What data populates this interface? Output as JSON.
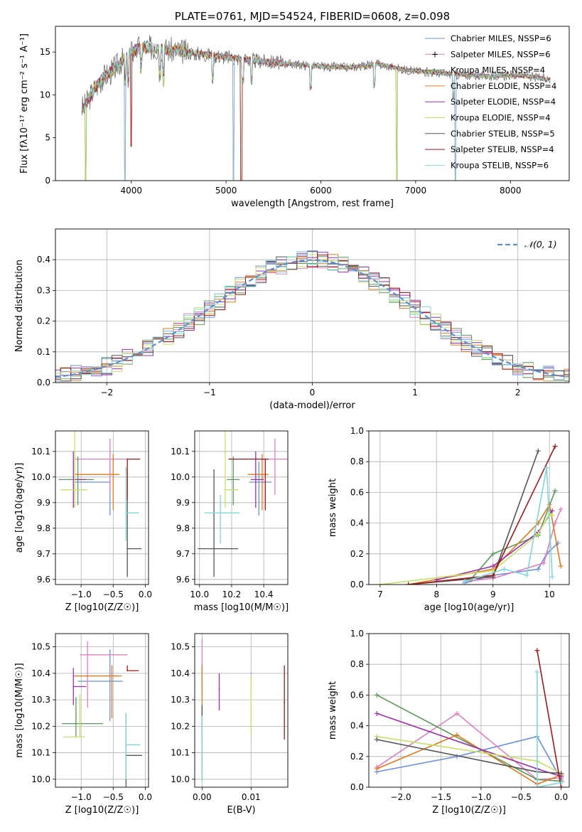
{
  "colors": {
    "chabrier_miles": "#6b8fe0",
    "salpeter_miles": "#e27fbd",
    "kroupa_miles": "#5a9a5a",
    "chabrier_elodie": "#e07a1f",
    "salpeter_elodie": "#9b2fae",
    "kroupa_elodie": "#c7e066",
    "chabrier_stelib": "#555555",
    "salpeter_stelib": "#a01818",
    "kroupa_stelib": "#7fd8d8",
    "normal": "#5b8fd6"
  },
  "chart_data": [
    {
      "id": "spectrum",
      "type": "line",
      "title": "PLATE=0761, MJD=54524, FIBERID=0608, z=0.098",
      "xlabel": "wavelength [Angstrom, rest frame]",
      "ylabel": "Flux [fλ10⁻¹⁷ erg cm⁻² s⁻¹ A⁻¹]",
      "xlim": [
        3200,
        8620
      ],
      "ylim": [
        0,
        18
      ],
      "xticks": [
        "4000",
        "5000",
        "6000",
        "7000",
        "8000"
      ],
      "yticks": [
        "0",
        "5",
        "10",
        "15"
      ],
      "legend_position": "top-right",
      "legend": [
        "Chabrier MILES, NSSP=6",
        "Salpeter MILES, NSSP=6",
        "Kroupa MILES, NSSP=4",
        "Chabrier ELODIE, NSSP=4",
        "Salpeter ELODIE, NSSP=4",
        "Kroupa ELODIE, NSSP=4",
        "Chabrier STELIB, NSSP=5",
        "Salpeter STELIB, NSSP=4",
        "Kroupa STELIB, NSSP=6"
      ],
      "continuum": {
        "x": [
          3500,
          3600,
          3700,
          3800,
          3900,
          4000,
          4100,
          4300,
          4500,
          4800,
          5000,
          5300,
          5600,
          6000,
          6300,
          6600,
          6900,
          7200,
          7500,
          7800,
          8100,
          8400
        ],
        "y": [
          8.5,
          10.5,
          12.0,
          12.8,
          14.0,
          15.0,
          15.6,
          15.4,
          15.1,
          14.7,
          14.4,
          14.0,
          13.7,
          13.3,
          13.2,
          13.6,
          12.9,
          12.6,
          12.3,
          12.2,
          12.3,
          11.8
        ]
      },
      "absorption_lines": [
        3934,
        3968,
        4102,
        4304,
        4340,
        4861,
        5175,
        5270,
        5890,
        6563,
        7400
      ],
      "line_dips": [
        {
          "x": 3520,
          "y": 0
        },
        {
          "x": 3935,
          "y": 0
        },
        {
          "x": 4000,
          "y": 4
        },
        {
          "x": 4340,
          "y": 11
        },
        {
          "x": 5080,
          "y": 0
        },
        {
          "x": 5160,
          "y": 0
        },
        {
          "x": 6800,
          "y": 0
        },
        {
          "x": 7420,
          "y": 0
        }
      ]
    },
    {
      "id": "residuals",
      "type": "histogram",
      "xlabel": "(data-model)/error",
      "ylabel": "Normed distribution",
      "xlim": [
        -2.5,
        2.5
      ],
      "ylim": [
        0,
        0.5
      ],
      "xticks": [
        "−2",
        "−1",
        "0",
        "1",
        "2"
      ],
      "yticks": [
        "0.0",
        "0.1",
        "0.2",
        "0.3",
        "0.4"
      ],
      "legend": [
        "𝒩(0, 1)"
      ],
      "legend_position": "top-right",
      "bin_width": 0.1,
      "series": [
        {
          "color_key": "chabrier_miles",
          "seed": 1
        },
        {
          "color_key": "salpeter_miles",
          "seed": 2
        },
        {
          "color_key": "kroupa_miles",
          "seed": 3
        },
        {
          "color_key": "chabrier_elodie",
          "seed": 4
        },
        {
          "color_key": "salpeter_elodie",
          "seed": 5
        },
        {
          "color_key": "kroupa_elodie",
          "seed": 6
        },
        {
          "color_key": "chabrier_stelib",
          "seed": 7
        },
        {
          "color_key": "salpeter_stelib",
          "seed": 8
        },
        {
          "color_key": "kroupa_stelib",
          "seed": 9
        }
      ]
    },
    {
      "id": "age_vs_Z",
      "type": "errorbar",
      "xlabel": "Z [log10(Z/Z☉)]",
      "ylabel": "age  [log10(age/yr)]",
      "xlim": [
        -1.4,
        0.05
      ],
      "ylim": [
        9.58,
        10.18
      ],
      "xticks": [
        "−1.0",
        "−0.5",
        "0.0"
      ],
      "yticks": [
        "9.6",
        "9.7",
        "9.8",
        "9.9",
        "10.0",
        "10.1"
      ],
      "points": [
        {
          "color_key": "chabrier_miles",
          "x": -0.55,
          "xerr": [
            0.55,
            0.0
          ],
          "y": 9.98,
          "yerr": [
            0.13,
            0.08
          ]
        },
        {
          "color_key": "salpeter_miles",
          "x": -0.55,
          "xerr": [
            0.55,
            0.28
          ],
          "y": 10.07,
          "yerr": [
            0.13,
            0.08
          ]
        },
        {
          "color_key": "kroupa_miles",
          "x": -1.05,
          "xerr": [
            0.3,
            0.25
          ],
          "y": 9.99,
          "yerr": [
            0.1,
            0.09
          ]
        },
        {
          "color_key": "chabrier_elodie",
          "x": -0.5,
          "xerr": [
            0.6,
            0.1
          ],
          "y": 10.01,
          "yerr": [
            0.14,
            0.08
          ]
        },
        {
          "color_key": "salpeter_elodie",
          "x": -1.12,
          "xerr": [
            0.0,
            0.2
          ],
          "y": 9.99,
          "yerr": [
            0.11,
            0.11
          ]
        },
        {
          "color_key": "kroupa_elodie",
          "x": -1.1,
          "xerr": [
            0.22,
            0.2
          ],
          "y": 9.95,
          "yerr": [
            0.07,
            0.23
          ]
        },
        {
          "color_key": "chabrier_stelib",
          "x": -0.28,
          "xerr": [
            0.0,
            0.22
          ],
          "y": 9.72,
          "yerr": [
            0.11,
            0.31
          ]
        },
        {
          "color_key": "salpeter_stelib",
          "x": -0.28,
          "xerr": [
            0.0,
            0.2
          ],
          "y": 10.07,
          "yerr": [
            0.16,
            0.0
          ]
        },
        {
          "color_key": "kroupa_stelib",
          "x": -0.3,
          "xerr": [
            0.0,
            0.2
          ],
          "y": 9.86,
          "yerr": [
            0.11,
            0.18
          ]
        }
      ]
    },
    {
      "id": "age_vs_mass",
      "type": "errorbar",
      "xlabel": "mass [log10(M/M☉)]",
      "ylabel": "",
      "xlim": [
        9.97,
        10.55
      ],
      "ylim": [
        9.58,
        10.18
      ],
      "xticks": [
        "10.0",
        "10.2",
        "10.4"
      ],
      "yticks": [
        "9.6",
        "9.7",
        "9.8",
        "9.9",
        "10.0",
        "10.1"
      ],
      "points": [
        {
          "color_key": "chabrier_miles",
          "x": 10.37,
          "xerr": [
            0.06,
            0.08
          ],
          "y": 9.98,
          "yerr": [
            0.13,
            0.08
          ]
        },
        {
          "color_key": "salpeter_miles",
          "x": 10.47,
          "xerr": [
            0.1,
            0.09
          ],
          "y": 10.07,
          "yerr": [
            0.14,
            0.08
          ]
        },
        {
          "color_key": "kroupa_miles",
          "x": 10.21,
          "xerr": [
            0.04,
            0.04
          ],
          "y": 9.99,
          "yerr": [
            0.1,
            0.09
          ]
        },
        {
          "color_key": "chabrier_elodie",
          "x": 10.39,
          "xerr": [
            0.09,
            0.04
          ],
          "y": 10.01,
          "yerr": [
            0.14,
            0.08
          ]
        },
        {
          "color_key": "salpeter_elodie",
          "x": 10.35,
          "xerr": [
            0.03,
            0.05
          ],
          "y": 9.99,
          "yerr": [
            0.11,
            0.11
          ]
        },
        {
          "color_key": "kroupa_elodie",
          "x": 10.16,
          "xerr": [
            0.0,
            0.08
          ],
          "y": 9.95,
          "yerr": [
            0.07,
            0.23
          ]
        },
        {
          "color_key": "chabrier_stelib",
          "x": 10.09,
          "xerr": [
            0.1,
            0.15
          ],
          "y": 9.72,
          "yerr": [
            0.11,
            0.31
          ]
        },
        {
          "color_key": "salpeter_stelib",
          "x": 10.41,
          "xerr": [
            0.23,
            0.02
          ],
          "y": 10.07,
          "yerr": [
            0.2,
            0.0
          ]
        },
        {
          "color_key": "kroupa_stelib",
          "x": 10.13,
          "xerr": [
            0.1,
            0.12
          ],
          "y": 9.86,
          "yerr": [
            0.12,
            0.07
          ]
        }
      ]
    },
    {
      "id": "weight_vs_age",
      "type": "line",
      "xlabel": "age  [log10(age/yr)]",
      "ylabel": "mass weight",
      "xlim": [
        6.8,
        10.35
      ],
      "ylim": [
        0,
        1
      ],
      "xticks": [
        "7",
        "8",
        "9",
        "10"
      ],
      "yticks": [
        "0.0",
        "0.2",
        "0.4",
        "0.6",
        "0.8",
        "1.0"
      ],
      "series": [
        {
          "color_key": "chabrier_miles",
          "x": [
            8.5,
            9.0,
            9.8,
            9.95,
            10.15
          ],
          "y": [
            0.01,
            0.06,
            0.1,
            0.2,
            0.27
          ]
        },
        {
          "color_key": "salpeter_miles",
          "x": [
            8.5,
            9.0,
            9.9,
            10.1,
            10.2
          ],
          "y": [
            0.02,
            0.04,
            0.14,
            0.4,
            0.49
          ]
        },
        {
          "color_key": "kroupa_miles",
          "x": [
            8.6,
            9.0,
            9.8,
            10.1
          ],
          "y": [
            0.03,
            0.2,
            0.32,
            0.61
          ]
        },
        {
          "color_key": "chabrier_elodie",
          "x": [
            7.5,
            9.0,
            9.8,
            10.0,
            10.2
          ],
          "y": [
            0.0,
            0.1,
            0.4,
            0.52,
            0.12
          ]
        },
        {
          "color_key": "salpeter_elodie",
          "x": [
            8.0,
            9.0,
            9.8,
            10.05
          ],
          "y": [
            0.03,
            0.12,
            0.34,
            0.48
          ]
        },
        {
          "color_key": "kroupa_elodie",
          "x": [
            7.0,
            9.0,
            9.8,
            10.0,
            10.05
          ],
          "y": [
            0.0,
            0.09,
            0.33,
            0.46,
            0.45
          ]
        },
        {
          "color_key": "chabrier_stelib",
          "x": [
            7.5,
            9.0,
            9.8
          ],
          "y": [
            0.0,
            0.05,
            0.87
          ]
        },
        {
          "color_key": "salpeter_stelib",
          "x": [
            7.5,
            9.0,
            10.1
          ],
          "y": [
            0.0,
            0.06,
            0.9
          ]
        },
        {
          "color_key": "kroupa_stelib",
          "x": [
            8.5,
            9.2,
            9.6,
            9.95,
            10.05
          ],
          "y": [
            0.02,
            0.1,
            0.06,
            0.76,
            0.05
          ]
        }
      ]
    },
    {
      "id": "mass_vs_Z",
      "type": "errorbar",
      "xlabel": "Z [log10(Z/Z☉)]",
      "ylabel": "mass [log10(M/M☉)]",
      "xlim": [
        -1.4,
        0.05
      ],
      "ylim": [
        9.97,
        10.55
      ],
      "xticks": [
        "−1.0",
        "−0.5",
        "0.0"
      ],
      "yticks": [
        "10.0",
        "10.1",
        "10.2",
        "10.3",
        "10.4",
        "10.5"
      ],
      "points": [
        {
          "color_key": "chabrier_miles",
          "x": -0.55,
          "xerr": [
            0.5,
            0.2
          ],
          "y": 10.37,
          "yerr": [
            0.15,
            0.12
          ]
        },
        {
          "color_key": "salpeter_miles",
          "x": -0.9,
          "xerr": [
            0.12,
            0.62
          ],
          "y": 10.47,
          "yerr": [
            0.2,
            0.05
          ]
        },
        {
          "color_key": "kroupa_miles",
          "x": -1.08,
          "xerr": [
            0.22,
            0.42
          ],
          "y": 10.21,
          "yerr": [
            0.05,
            0.1
          ]
        },
        {
          "color_key": "chabrier_elodie",
          "x": -0.52,
          "xerr": [
            0.6,
            0.15
          ],
          "y": 10.39,
          "yerr": [
            0.16,
            0.04
          ]
        },
        {
          "color_key": "salpeter_elodie",
          "x": -1.12,
          "xerr": [
            0.0,
            0.2
          ],
          "y": 10.35,
          "yerr": [
            0.07,
            0.07
          ]
        },
        {
          "color_key": "kroupa_elodie",
          "x": -1.02,
          "xerr": [
            0.26,
            0.08
          ],
          "y": 10.16,
          "yerr": [
            0.0,
            0.16
          ]
        },
        {
          "color_key": "chabrier_stelib",
          "x": -0.3,
          "xerr": [
            0.0,
            0.25
          ],
          "y": 10.09,
          "yerr": [
            0.12,
            0.16
          ]
        },
        {
          "color_key": "salpeter_stelib",
          "x": -0.28,
          "xerr": [
            0.0,
            0.18
          ],
          "y": 10.41,
          "yerr": [
            0.0,
            0.02
          ]
        },
        {
          "color_key": "kroupa_stelib",
          "x": -0.3,
          "xerr": [
            0.0,
            0.22
          ],
          "y": 10.13,
          "yerr": [
            0.13,
            0.12
          ]
        }
      ]
    },
    {
      "id": "mass_vs_ebv",
      "type": "errorbar",
      "xlabel": "E(B-V)",
      "ylabel": "",
      "xlim": [
        -0.0015,
        0.0175
      ],
      "ylim": [
        9.97,
        10.55
      ],
      "xticks": [
        "0.00",
        "0.01"
      ],
      "yticks": [
        "10.0",
        "10.1",
        "10.2",
        "10.3",
        "10.4",
        "10.5"
      ],
      "points": [
        {
          "color_key": "chabrier_miles",
          "x": 0.01,
          "yerr": [
            0.0,
            0.0
          ],
          "y": 10.4
        },
        {
          "color_key": "salpeter_miles",
          "x": 0.0,
          "yerr": [
            0.1,
            0.1
          ],
          "y": 10.43
        },
        {
          "color_key": "kroupa_miles",
          "x": 0.0,
          "yerr": [
            0.05,
            0.05
          ],
          "y": 10.21
        },
        {
          "color_key": "chabrier_elodie",
          "x": 0.0,
          "yerr": [
            0.16,
            0.04
          ],
          "y": 10.39
        },
        {
          "color_key": "salpeter_elodie",
          "x": 0.0035,
          "yerr": [
            0.08,
            0.06
          ],
          "y": 10.34
        },
        {
          "color_key": "kroupa_elodie",
          "x": 0.01,
          "yerr": [
            0.1,
            0.12
          ],
          "y": 10.27
        },
        {
          "color_key": "chabrier_stelib",
          "x": 0.0,
          "yerr": [
            0.12,
            0.16
          ],
          "y": 10.12
        },
        {
          "color_key": "salpeter_stelib",
          "x": 0.0168,
          "yerr": [
            0.14,
            0.14
          ],
          "y": 10.29
        },
        {
          "color_key": "kroupa_stelib",
          "x": 0.0,
          "yerr": [
            0.13,
            0.12
          ],
          "y": 10.12
        }
      ]
    },
    {
      "id": "weight_vs_Z",
      "type": "line",
      "xlabel": "Z [log10(Z/Z☉)]",
      "ylabel": "mass weight",
      "xlim": [
        -2.4,
        0.1
      ],
      "ylim": [
        0,
        1
      ],
      "xticks": [
        "−2.0",
        "−1.5",
        "−1.0",
        "−0.5",
        "0.0"
      ],
      "yticks": [
        "0.0",
        "0.2",
        "0.4",
        "0.6",
        "0.8",
        "1.0"
      ],
      "series": [
        {
          "color_key": "chabrier_miles",
          "x": [
            -2.3,
            -1.3,
            -0.3,
            0.0
          ],
          "y": [
            0.1,
            0.2,
            0.33,
            0.05
          ]
        },
        {
          "color_key": "salpeter_miles",
          "x": [
            -2.3,
            -1.3,
            -0.3,
            0.0
          ],
          "y": [
            0.13,
            0.48,
            0.05,
            0.06
          ]
        },
        {
          "color_key": "kroupa_miles",
          "x": [
            -2.3,
            -0.3,
            0.0
          ],
          "y": [
            0.6,
            0.05,
            0.04
          ]
        },
        {
          "color_key": "chabrier_elodie",
          "x": [
            -2.3,
            -1.3,
            -0.3,
            0.0
          ],
          "y": [
            0.12,
            0.34,
            0.02,
            0.08
          ]
        },
        {
          "color_key": "salpeter_elodie",
          "x": [
            -2.3,
            -0.3,
            0.0
          ],
          "y": [
            0.48,
            0.12,
            0.07
          ]
        },
        {
          "color_key": "kroupa_elodie",
          "x": [
            -2.3,
            -0.3,
            0.0
          ],
          "y": [
            0.33,
            0.17,
            0.09
          ]
        },
        {
          "color_key": "chabrier_stelib",
          "x": [
            -2.3,
            -0.3,
            0.0
          ],
          "y": [
            0.31,
            0.1,
            0.09
          ]
        },
        {
          "color_key": "salpeter_stelib",
          "x": [
            -0.3,
            0.0
          ],
          "y": [
            0.89,
            0.0
          ]
        },
        {
          "color_key": "kroupa_stelib",
          "x": [
            -0.3,
            -0.3,
            0.0
          ],
          "y": [
            0.75,
            0.0,
            0.03
          ]
        }
      ]
    }
  ]
}
